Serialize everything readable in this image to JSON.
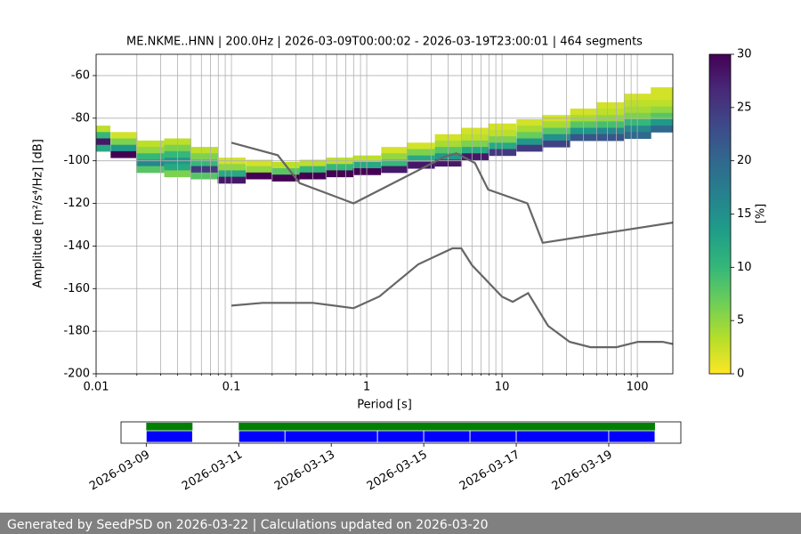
{
  "chart_data": [
    {
      "type": "ppsd",
      "title": "ME.NKME..HNN | 200.0Hz | 2026-03-09T00:00:02 - 2026-03-19T23:00:01 | 464 segments",
      "xlabel": "Period [s]",
      "ylabel": "Amplitude [m²/s⁴/Hz] [dB]",
      "log_x": true,
      "grid": true,
      "xlim": [
        0.01,
        183
      ],
      "ylim": [
        -200,
        -50
      ],
      "xticks": [
        0.01,
        0.1,
        1,
        10,
        100
      ],
      "x_minor_ticks": [
        0.02,
        0.03,
        0.04,
        0.05,
        0.06,
        0.07,
        0.08,
        0.09,
        0.2,
        0.3,
        0.4,
        0.5,
        0.6,
        0.7,
        0.8,
        0.9,
        2,
        3,
        4,
        5,
        6,
        7,
        8,
        9,
        20,
        30,
        40,
        50,
        60,
        70,
        80,
        90
      ],
      "yticks": [
        -200,
        -180,
        -160,
        -140,
        -120,
        -100,
        -80,
        -60
      ],
      "colormap": "viridis_r",
      "clim": [
        0,
        30
      ],
      "cticks": [
        0,
        5,
        10,
        15,
        20,
        25,
        30
      ],
      "clabel": "[%]",
      "heatmap": {
        "periods": [
          0.01,
          0.016,
          0.025,
          0.04,
          0.063,
          0.1,
          0.16,
          0.25,
          0.4,
          0.63,
          1,
          1.6,
          2.5,
          4,
          6.3,
          10,
          16,
          25,
          40,
          63,
          100,
          158
        ],
        "db": [
          [
            -85,
            -88,
            -91,
            -94
          ],
          [
            -88,
            -91,
            -94,
            -97
          ],
          [
            -92,
            -95,
            -98,
            -101,
            -104
          ],
          [
            -91,
            -94,
            -97,
            -100,
            -103,
            -106
          ],
          [
            -95,
            -98,
            -101,
            -104,
            -107
          ],
          [
            -100,
            -103,
            -106,
            -109
          ],
          [
            -101,
            -104,
            -107
          ],
          [
            -102,
            -105,
            -108
          ],
          [
            -101,
            -104,
            -107
          ],
          [
            -100,
            -103,
            -106
          ],
          [
            -99,
            -102,
            -105
          ],
          [
            -95,
            -98,
            -101,
            -104
          ],
          [
            -93,
            -96,
            -99,
            -102
          ],
          [
            -89,
            -92,
            -95,
            -98,
            -101
          ],
          [
            -86,
            -89,
            -92,
            -95,
            -98
          ],
          [
            -84,
            -87,
            -90,
            -93,
            -96
          ],
          [
            -82,
            -85,
            -88,
            -91,
            -94
          ],
          [
            -80,
            -83,
            -86,
            -89,
            -92
          ],
          [
            -77,
            -80,
            -83,
            -86,
            -89
          ],
          [
            -74,
            -77,
            -80,
            -83,
            -86,
            -89
          ],
          [
            -70,
            -73,
            -76,
            -79,
            -82,
            -85,
            -88
          ],
          [
            -67,
            -70,
            -73,
            -76,
            -79,
            -82,
            -85
          ]
        ],
        "percent": [
          [
            3,
            10,
            28,
            12
          ],
          [
            2,
            6,
            14,
            30
          ],
          [
            3,
            5,
            10,
            16,
            8
          ],
          [
            3,
            6,
            10,
            14,
            12,
            6
          ],
          [
            3,
            6,
            10,
            25,
            8
          ],
          [
            2,
            5,
            12,
            28
          ],
          [
            2,
            5,
            30
          ],
          [
            3,
            8,
            30
          ],
          [
            3,
            10,
            30
          ],
          [
            3,
            10,
            30
          ],
          [
            3,
            12,
            30
          ],
          [
            2,
            5,
            10,
            28
          ],
          [
            2,
            6,
            12,
            28
          ],
          [
            2,
            4,
            8,
            14,
            28
          ],
          [
            2,
            3,
            6,
            12,
            28
          ],
          [
            2,
            3,
            6,
            12,
            25
          ],
          [
            2,
            4,
            7,
            14,
            25
          ],
          [
            2,
            4,
            8,
            15,
            24
          ],
          [
            2,
            4,
            8,
            14,
            22
          ],
          [
            2,
            3,
            5,
            9,
            16,
            22
          ],
          [
            2,
            3,
            4,
            6,
            10,
            16,
            20
          ],
          [
            2,
            2,
            3,
            5,
            8,
            14,
            20
          ]
        ]
      },
      "series": [
        {
          "color": "#666666",
          "x": [
            0.1,
            0.22,
            0.32,
            0.8,
            3.8,
            4.6,
            6.3,
            7.9,
            15.4,
            20,
            183
          ],
          "values": [
            -91.5,
            -97.4,
            -110.5,
            -120,
            -98,
            -96.5,
            -101,
            -113.5,
            -120,
            -138.5,
            -129
          ]
        },
        {
          "color": "#666666",
          "x": [
            0.1,
            0.17,
            0.4,
            0.8,
            1.24,
            2.4,
            4.3,
            5,
            6,
            10,
            12,
            15.6,
            21.9,
            31.6,
            45,
            70,
            101,
            154,
            183
          ],
          "values": [
            -168,
            -166.7,
            -166.7,
            -169.2,
            -163.7,
            -148.6,
            -141.1,
            -141.1,
            -149,
            -163.8,
            -166.2,
            -162.1,
            -177.5,
            -185,
            -187.5,
            -187.5,
            -185,
            -185,
            -186
          ]
        }
      ]
    },
    {
      "type": "timeline",
      "xlim": [
        "2026-03-08T10:55:00Z",
        "2026-03-20T13:25:00Z"
      ],
      "xticks": [
        "2026-03-09",
        "2026-03-11",
        "2026-03-13",
        "2026-03-15",
        "2026-03-17",
        "2026-03-19"
      ],
      "series": [
        {
          "color": "#008000",
          "intervals": [
            [
              "2026-03-09",
              "2026-03-10"
            ],
            [
              "2026-03-11",
              "2026-03-20"
            ]
          ]
        },
        {
          "color": "#0000ff",
          "intervals": [
            [
              "2026-03-09",
              "2026-03-10"
            ],
            [
              "2026-03-11",
              "2026-03-12"
            ],
            [
              "2026-03-12",
              "2026-03-14"
            ],
            [
              "2026-03-14",
              "2026-03-15"
            ],
            [
              "2026-03-15",
              "2026-03-16"
            ],
            [
              "2026-03-16",
              "2026-03-17"
            ],
            [
              "2026-03-17",
              "2026-03-19"
            ],
            [
              "2026-03-19",
              "2026-03-20"
            ]
          ]
        }
      ]
    }
  ],
  "footer": "Generated by SeedPSD on 2026-03-22 | Calculations updated on 2026-03-20"
}
